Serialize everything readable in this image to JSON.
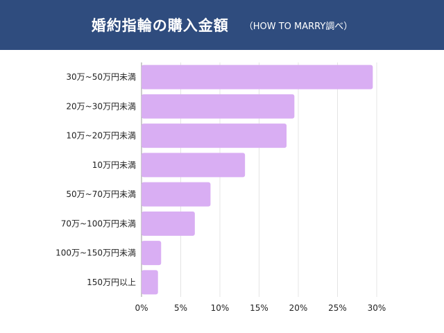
{
  "header": {
    "title": "婚約指輪の購入金額",
    "subtitle": "（HOW TO MARRY調べ）",
    "background": "#2f4c7e"
  },
  "chart_data": {
    "type": "bar",
    "orientation": "horizontal",
    "categories": [
      "30万~50万円未満",
      "20万~30万円未満",
      "10万~20万円未満",
      "10万円未満",
      "50万~70万円未満",
      "70万~100万円未満",
      "100万~150万円未満",
      "150万円以上"
    ],
    "values": [
      29.5,
      19.5,
      18.5,
      13.2,
      8.8,
      6.8,
      2.5,
      2.1
    ],
    "xlim": [
      0,
      30
    ],
    "xticks": [
      0,
      5,
      10,
      15,
      20,
      25,
      30
    ],
    "xtick_labels": [
      "0%",
      "5%",
      "10%",
      "15%",
      "20%",
      "25%",
      "30%"
    ],
    "grid": "vertical",
    "bar_color": "#d9aef3"
  }
}
